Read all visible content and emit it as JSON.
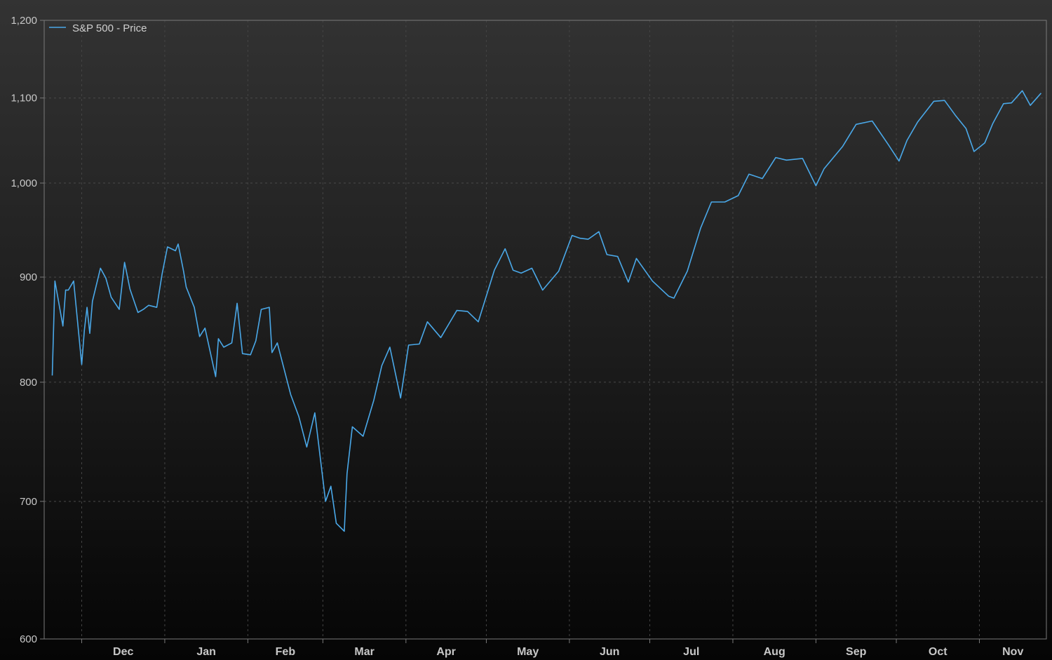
{
  "chart_data": {
    "type": "line",
    "title": "",
    "xlabel": "",
    "ylabel": "",
    "y_scale": "log",
    "ylim": [
      600,
      1200
    ],
    "yticks": [
      600,
      700,
      800,
      900,
      1000,
      1100,
      1200
    ],
    "ytick_labels": [
      "600",
      "700",
      "800",
      "900",
      "1,000",
      "1,100",
      "1,200"
    ],
    "grid": true,
    "legend": "top-left",
    "series_color": "#4aa8e8",
    "month_labels": [
      "Dec",
      "Jan",
      "Feb",
      "Mar",
      "Apr",
      "May",
      "Jun",
      "Jul",
      "Aug",
      "Sep",
      "Oct",
      "Nov"
    ],
    "series": [
      {
        "name": "S&P 500 - Price",
        "x": [
          "2008-11-20",
          "2008-11-21",
          "2008-11-24",
          "2008-11-25",
          "2008-11-26",
          "2008-11-28",
          "2008-12-01",
          "2008-12-02",
          "2008-12-03",
          "2008-12-04",
          "2008-12-05",
          "2008-12-08",
          "2008-12-10",
          "2008-12-12",
          "2008-12-15",
          "2008-12-17",
          "2008-12-19",
          "2008-12-22",
          "2008-12-24",
          "2008-12-26",
          "2008-12-29",
          "2008-12-31",
          "2009-01-02",
          "2009-01-05",
          "2009-01-06",
          "2009-01-08",
          "2009-01-09",
          "2009-01-12",
          "2009-01-14",
          "2009-01-16",
          "2009-01-20",
          "2009-01-21",
          "2009-01-23",
          "2009-01-26",
          "2009-01-28",
          "2009-01-30",
          "2009-02-02",
          "2009-02-04",
          "2009-02-06",
          "2009-02-09",
          "2009-02-10",
          "2009-02-12",
          "2009-02-17",
          "2009-02-20",
          "2009-02-23",
          "2009-02-26",
          "2009-03-02",
          "2009-03-04",
          "2009-03-06",
          "2009-03-09",
          "2009-03-10",
          "2009-03-12",
          "2009-03-16",
          "2009-03-20",
          "2009-03-23",
          "2009-03-26",
          "2009-03-30",
          "2009-04-02",
          "2009-04-06",
          "2009-04-09",
          "2009-04-14",
          "2009-04-20",
          "2009-04-24",
          "2009-04-28",
          "2009-05-04",
          "2009-05-08",
          "2009-05-11",
          "2009-05-14",
          "2009-05-18",
          "2009-05-22",
          "2009-05-28",
          "2009-06-02",
          "2009-06-05",
          "2009-06-08",
          "2009-06-12",
          "2009-06-15",
          "2009-06-19",
          "2009-06-23",
          "2009-06-26",
          "2009-07-02",
          "2009-07-08",
          "2009-07-10",
          "2009-07-15",
          "2009-07-20",
          "2009-07-24",
          "2009-07-29",
          "2009-08-03",
          "2009-08-07",
          "2009-08-12",
          "2009-08-17",
          "2009-08-21",
          "2009-08-27",
          "2009-09-01",
          "2009-09-04",
          "2009-09-11",
          "2009-09-16",
          "2009-09-22",
          "2009-09-28",
          "2009-10-02",
          "2009-10-05",
          "2009-10-09",
          "2009-10-15",
          "2009-10-19",
          "2009-10-23",
          "2009-10-27",
          "2009-10-30",
          "2009-11-03",
          "2009-11-06",
          "2009-11-10",
          "2009-11-13",
          "2009-11-17",
          "2009-11-20",
          "2009-11-24"
        ],
        "y": [
          806,
          896,
          852,
          887,
          887,
          896,
          816,
          848,
          870,
          845,
          876,
          909,
          899,
          880,
          868,
          915,
          888,
          865,
          868,
          872,
          870,
          903,
          931,
          927,
          934,
          906,
          890,
          870,
          842,
          850,
          805,
          840,
          832,
          836,
          874,
          826,
          825,
          838,
          868,
          870,
          827,
          836,
          789,
          770,
          744,
          773,
          700,
          712,
          683,
          677,
          722,
          761,
          753,
          784,
          815,
          832,
          786,
          834,
          835,
          856,
          841,
          867,
          866,
          856,
          907,
          929,
          907,
          904,
          909,
          887,
          906,
          943,
          940,
          939,
          947,
          923,
          921,
          895,
          919,
          896,
          881,
          879,
          906,
          951,
          979,
          979,
          986,
          1010,
          1005,
          1029,
          1026,
          1028,
          997,
          1016,
          1042,
          1068,
          1072,
          1044,
          1025,
          1049,
          1071,
          1096,
          1097,
          1079,
          1063,
          1036,
          1046,
          1069,
          1093,
          1094,
          1109,
          1091,
          1106
        ]
      }
    ]
  }
}
